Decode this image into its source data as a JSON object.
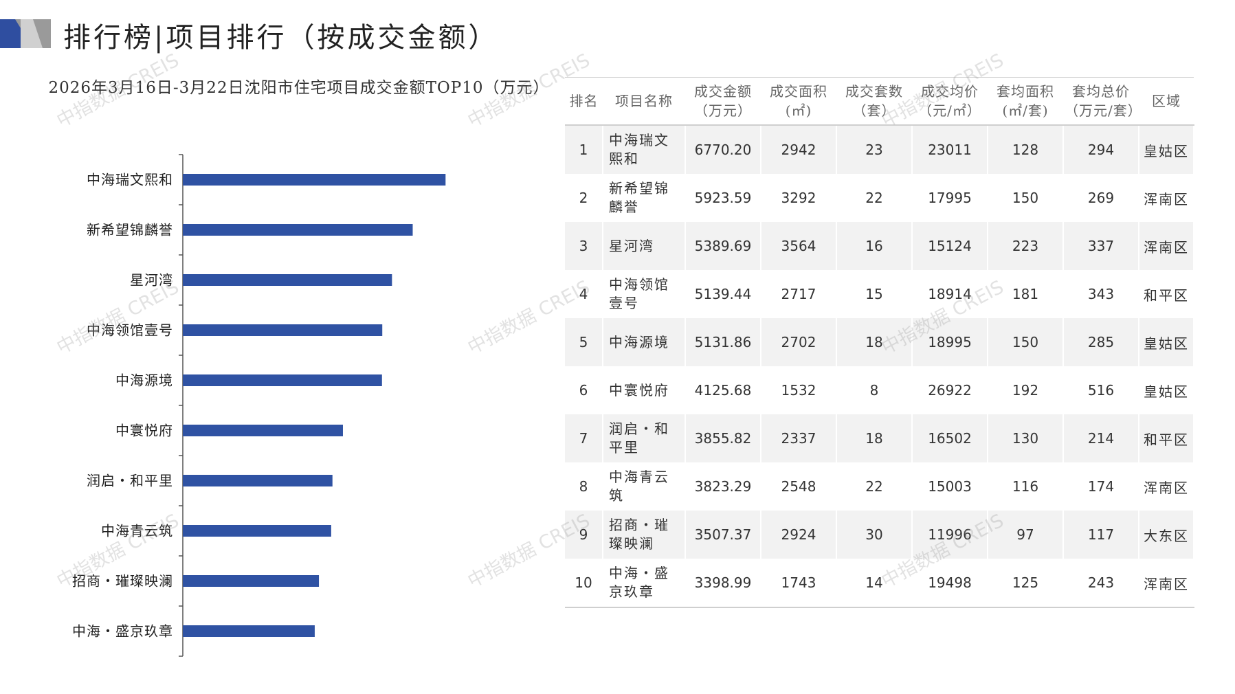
{
  "page": {
    "title": "排行榜|项目排行（按成交金额）"
  },
  "colors": {
    "bar": "#2f52a3",
    "logo_dark": "#2f4ea0",
    "logo_gray": "#9a9a9a"
  },
  "chart_data": {
    "type": "bar",
    "orientation": "horizontal",
    "title": "2026年3月16日-3月22日沈阳市住宅项目成交金额TOP10（万元）",
    "categories": [
      "中海瑞文熙和",
      "新希望锦麟誉",
      "星河湾",
      "中海领馆壹号",
      "中海源境",
      "中寰悦府",
      "润启・和平里",
      "中海青云筑",
      "招商・璀璨映澜",
      "中海・盛京玖章"
    ],
    "values": [
      6770.2,
      5923.59,
      5389.69,
      5139.44,
      5131.86,
      4125.68,
      3855.82,
      3823.29,
      3507.37,
      3398.99
    ],
    "xlim": [
      0,
      8500
    ],
    "grid": false,
    "legend": "none"
  },
  "table": {
    "headers": [
      [
        "排名"
      ],
      [
        "项目名称"
      ],
      [
        "成交金额",
        "（万元）"
      ],
      [
        "成交面积",
        "(㎡)"
      ],
      [
        "成交套数",
        "（套）"
      ],
      [
        "成交均价",
        "（元/㎡）"
      ],
      [
        "套均面积",
        "(㎡/套)"
      ],
      [
        "套均总价",
        "（万元/套）"
      ],
      [
        "区域"
      ]
    ],
    "rows": [
      [
        "1",
        "中海瑞文熙和",
        "6770.20",
        "2942",
        "23",
        "23011",
        "128",
        "294",
        "皇姑区"
      ],
      [
        "2",
        "新希望锦麟誉",
        "5923.59",
        "3292",
        "22",
        "17995",
        "150",
        "269",
        "浑南区"
      ],
      [
        "3",
        "星河湾",
        "5389.69",
        "3564",
        "16",
        "15124",
        "223",
        "337",
        "浑南区"
      ],
      [
        "4",
        "中海领馆壹号",
        "5139.44",
        "2717",
        "15",
        "18914",
        "181",
        "343",
        "和平区"
      ],
      [
        "5",
        "中海源境",
        "5131.86",
        "2702",
        "18",
        "18995",
        "150",
        "285",
        "皇姑区"
      ],
      [
        "6",
        "中寰悦府",
        "4125.68",
        "1532",
        "8",
        "26922",
        "192",
        "516",
        "皇姑区"
      ],
      [
        "7",
        "润启・和平里",
        "3855.82",
        "2337",
        "18",
        "16502",
        "130",
        "214",
        "和平区"
      ],
      [
        "8",
        "中海青云筑",
        "3823.29",
        "2548",
        "22",
        "15003",
        "116",
        "174",
        "浑南区"
      ],
      [
        "9",
        "招商・璀璨映澜",
        "3507.37",
        "2924",
        "30",
        "11996",
        "97",
        "117",
        "大东区"
      ],
      [
        "10",
        "中海・盛京玖章",
        "3398.99",
        "1743",
        "14",
        "19498",
        "125",
        "243",
        "浑南区"
      ]
    ]
  },
  "watermark": {
    "text": "中指数据 CREIS"
  }
}
